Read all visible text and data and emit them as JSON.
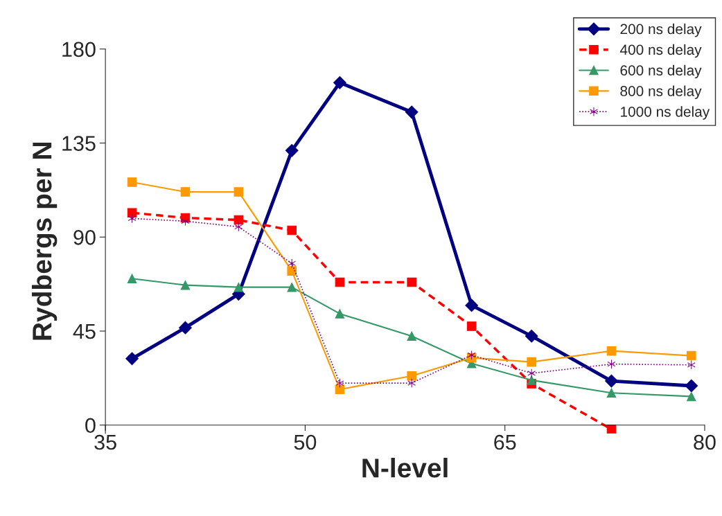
{
  "chart_data": {
    "type": "line",
    "xlabel": "N-level",
    "ylabel": "Rydbergs per N",
    "x": [
      37,
      41,
      45,
      49,
      52.6,
      58,
      62.5,
      67,
      73,
      79
    ],
    "xlim": [
      35,
      80
    ],
    "xticks": [
      35,
      50,
      65,
      80
    ],
    "ylim": [
      -4,
      180
    ],
    "yticks": [
      0,
      45,
      90,
      135,
      180
    ],
    "grid": false,
    "legend": "top right",
    "series": [
      {
        "name": "200 ns delay",
        "color": "#000080",
        "marker": "diamond",
        "line_style": "solid",
        "values": [
          31.8,
          46.6,
          62.7,
          131.4,
          163.9,
          149.8,
          57.3,
          42.6,
          21.1,
          18.8
        ]
      },
      {
        "name": "400 ns delay",
        "color": "#ff0000",
        "marker": "square",
        "line_style": "dashed",
        "values": [
          101.6,
          99.2,
          98.2,
          93.2,
          68.4,
          68.4,
          47.3,
          19.8,
          -2,
          null
        ]
      },
      {
        "name": "600 ns delay",
        "color": "#339966",
        "marker": "triangle",
        "line_style": "solid",
        "values": [
          70.1,
          67.0,
          66.0,
          66.0,
          53.3,
          42.6,
          29.5,
          21.5,
          15.4,
          13.7
        ]
      },
      {
        "name": "800 ns delay",
        "color": "#ff9900",
        "marker": "square",
        "line_style": "solid",
        "values": [
          116.3,
          111.6,
          111.6,
          73.8,
          17.1,
          23.5,
          32.2,
          30.2,
          35.5,
          33.2
        ]
      },
      {
        "name": "1000 ns delay",
        "color": "#800080",
        "marker": "cross",
        "line_style": "dotted",
        "values": [
          98.9,
          97.6,
          94.9,
          77.4,
          20.1,
          20.1,
          33.5,
          24.8,
          29.2,
          28.8
        ]
      }
    ]
  }
}
